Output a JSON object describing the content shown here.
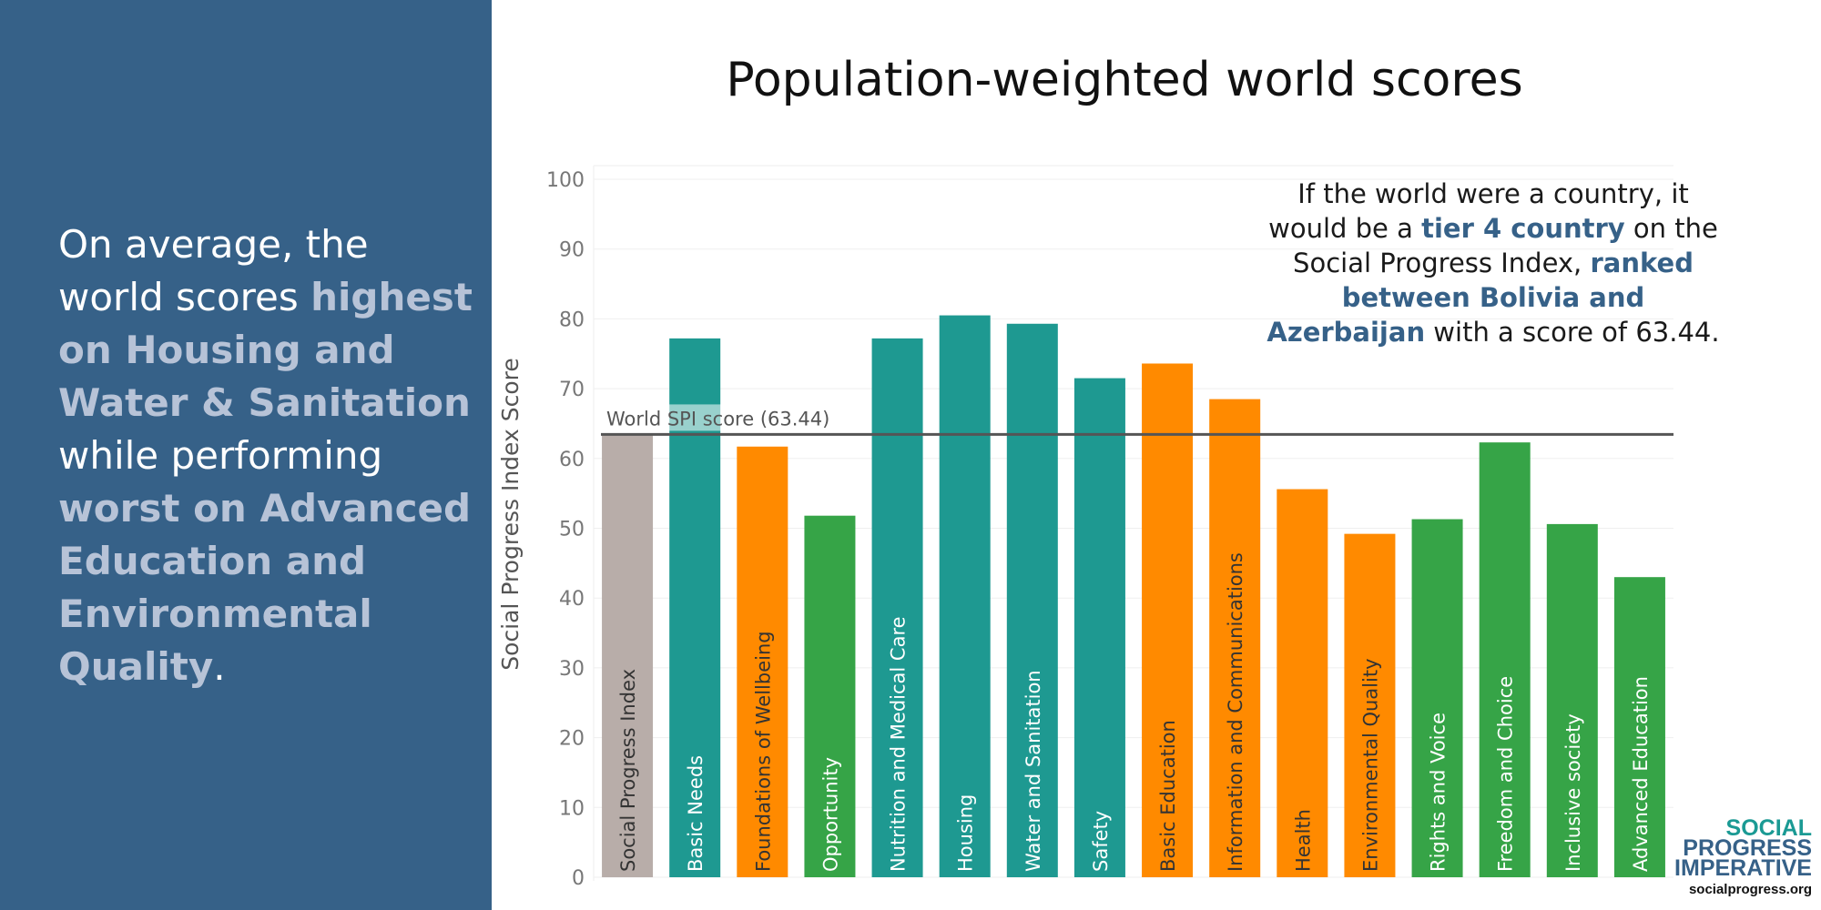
{
  "panel": {
    "parts": [
      {
        "text": "On average, the world scores ",
        "hl": false
      },
      {
        "text": "highest on Housing and Water & Sanitation",
        "hl": true
      },
      {
        "text": " while performing ",
        "hl": false
      },
      {
        "text": "worst on Advanced Education and Environmental Quality",
        "hl": true
      },
      {
        "text": ".",
        "hl": false
      }
    ],
    "bg_color": "#366188",
    "highlight_color": "#b7c3d7"
  },
  "callout": {
    "parts": [
      {
        "text": "If the world were a country, it would be a ",
        "hl": false
      },
      {
        "text": "tier 4 country",
        "hl": true
      },
      {
        "text": " on the Social Progress Index, ",
        "hl": false
      },
      {
        "text": "ranked between Bolivia and Azerbaijan",
        "hl": true
      },
      {
        "text": " with a score of 63.44.",
        "hl": false
      }
    ]
  },
  "logo": {
    "words": [
      "SOCIAL",
      "PROGRESS",
      "IMPERATIVE"
    ],
    "url": "socialprogress.org"
  },
  "chart_data": {
    "type": "bar",
    "title": "Population-weighted world scores",
    "ylabel": "Social Progress Index Score",
    "xlabel": "",
    "ylim": [
      0,
      100
    ],
    "yticks": [
      0,
      10,
      20,
      30,
      40,
      50,
      60,
      70,
      80,
      90,
      100
    ],
    "grid": true,
    "categories": [
      "Social Progress Index",
      "Basic Needs",
      "Foundations of Wellbeing",
      "Opportunity",
      "Nutrition and Medical Care",
      "Housing",
      "Water and Sanitation",
      "Safety",
      "Basic Education",
      "Information and Communications",
      "Health",
      "Environmental Quality",
      "Rights and Voice",
      "Freedom and Choice",
      "Inclusive society",
      "Advanced Education"
    ],
    "values": [
      63.44,
      77.2,
      61.7,
      51.8,
      77.2,
      80.5,
      79.3,
      71.5,
      73.6,
      68.5,
      55.6,
      49.2,
      51.3,
      62.3,
      50.6,
      43.0
    ],
    "colors": [
      "#b8ada9",
      "#1e9991",
      "#ff8a00",
      "#36a447",
      "#1e9991",
      "#1e9991",
      "#1e9991",
      "#1e9991",
      "#ff8a00",
      "#ff8a00",
      "#ff8a00",
      "#ff8a00",
      "#36a447",
      "#36a447",
      "#36a447",
      "#36a447"
    ],
    "label_colors": [
      "#333333",
      "#ffffff",
      "#333333",
      "#ffffff",
      "#ffffff",
      "#ffffff",
      "#ffffff",
      "#ffffff",
      "#333333",
      "#333333",
      "#333333",
      "#333333",
      "#ffffff",
      "#ffffff",
      "#ffffff",
      "#ffffff"
    ],
    "reference_line": {
      "value": 63.44,
      "label": "World SPI score (63.44)"
    }
  }
}
